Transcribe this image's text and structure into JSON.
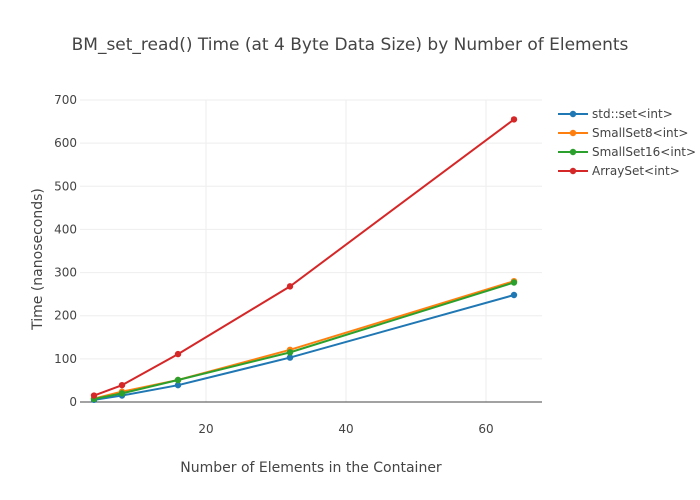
{
  "chart_data": {
    "type": "line",
    "title": "BM_set_read() Time (at 4 Byte Data Size) by Number of Elements",
    "xlabel": "Number of Elements in the Container",
    "ylabel": "Time (nanoseconds)",
    "xlim": [
      2,
      68
    ],
    "ylim": [
      0,
      700
    ],
    "xticks": [
      20,
      40,
      60
    ],
    "yticks": [
      0,
      100,
      200,
      300,
      400,
      500,
      600,
      700
    ],
    "grid": true,
    "legend_position": "right",
    "x": [
      4,
      8,
      16,
      32,
      64
    ],
    "series": [
      {
        "name": "std::set<int>",
        "color": "#1f77b4",
        "values": [
          5,
          15,
          39,
          103,
          248
        ]
      },
      {
        "name": "SmallSet8<int>",
        "color": "#ff7f0e",
        "values": [
          8,
          24,
          51,
          121,
          280
        ]
      },
      {
        "name": "SmallSet16<int>",
        "color": "#2ca02c",
        "values": [
          7,
          20,
          51,
          115,
          277
        ]
      },
      {
        "name": "ArraySet<int>",
        "color": "#d62728",
        "values": [
          15,
          39,
          111,
          268,
          655
        ]
      }
    ]
  }
}
